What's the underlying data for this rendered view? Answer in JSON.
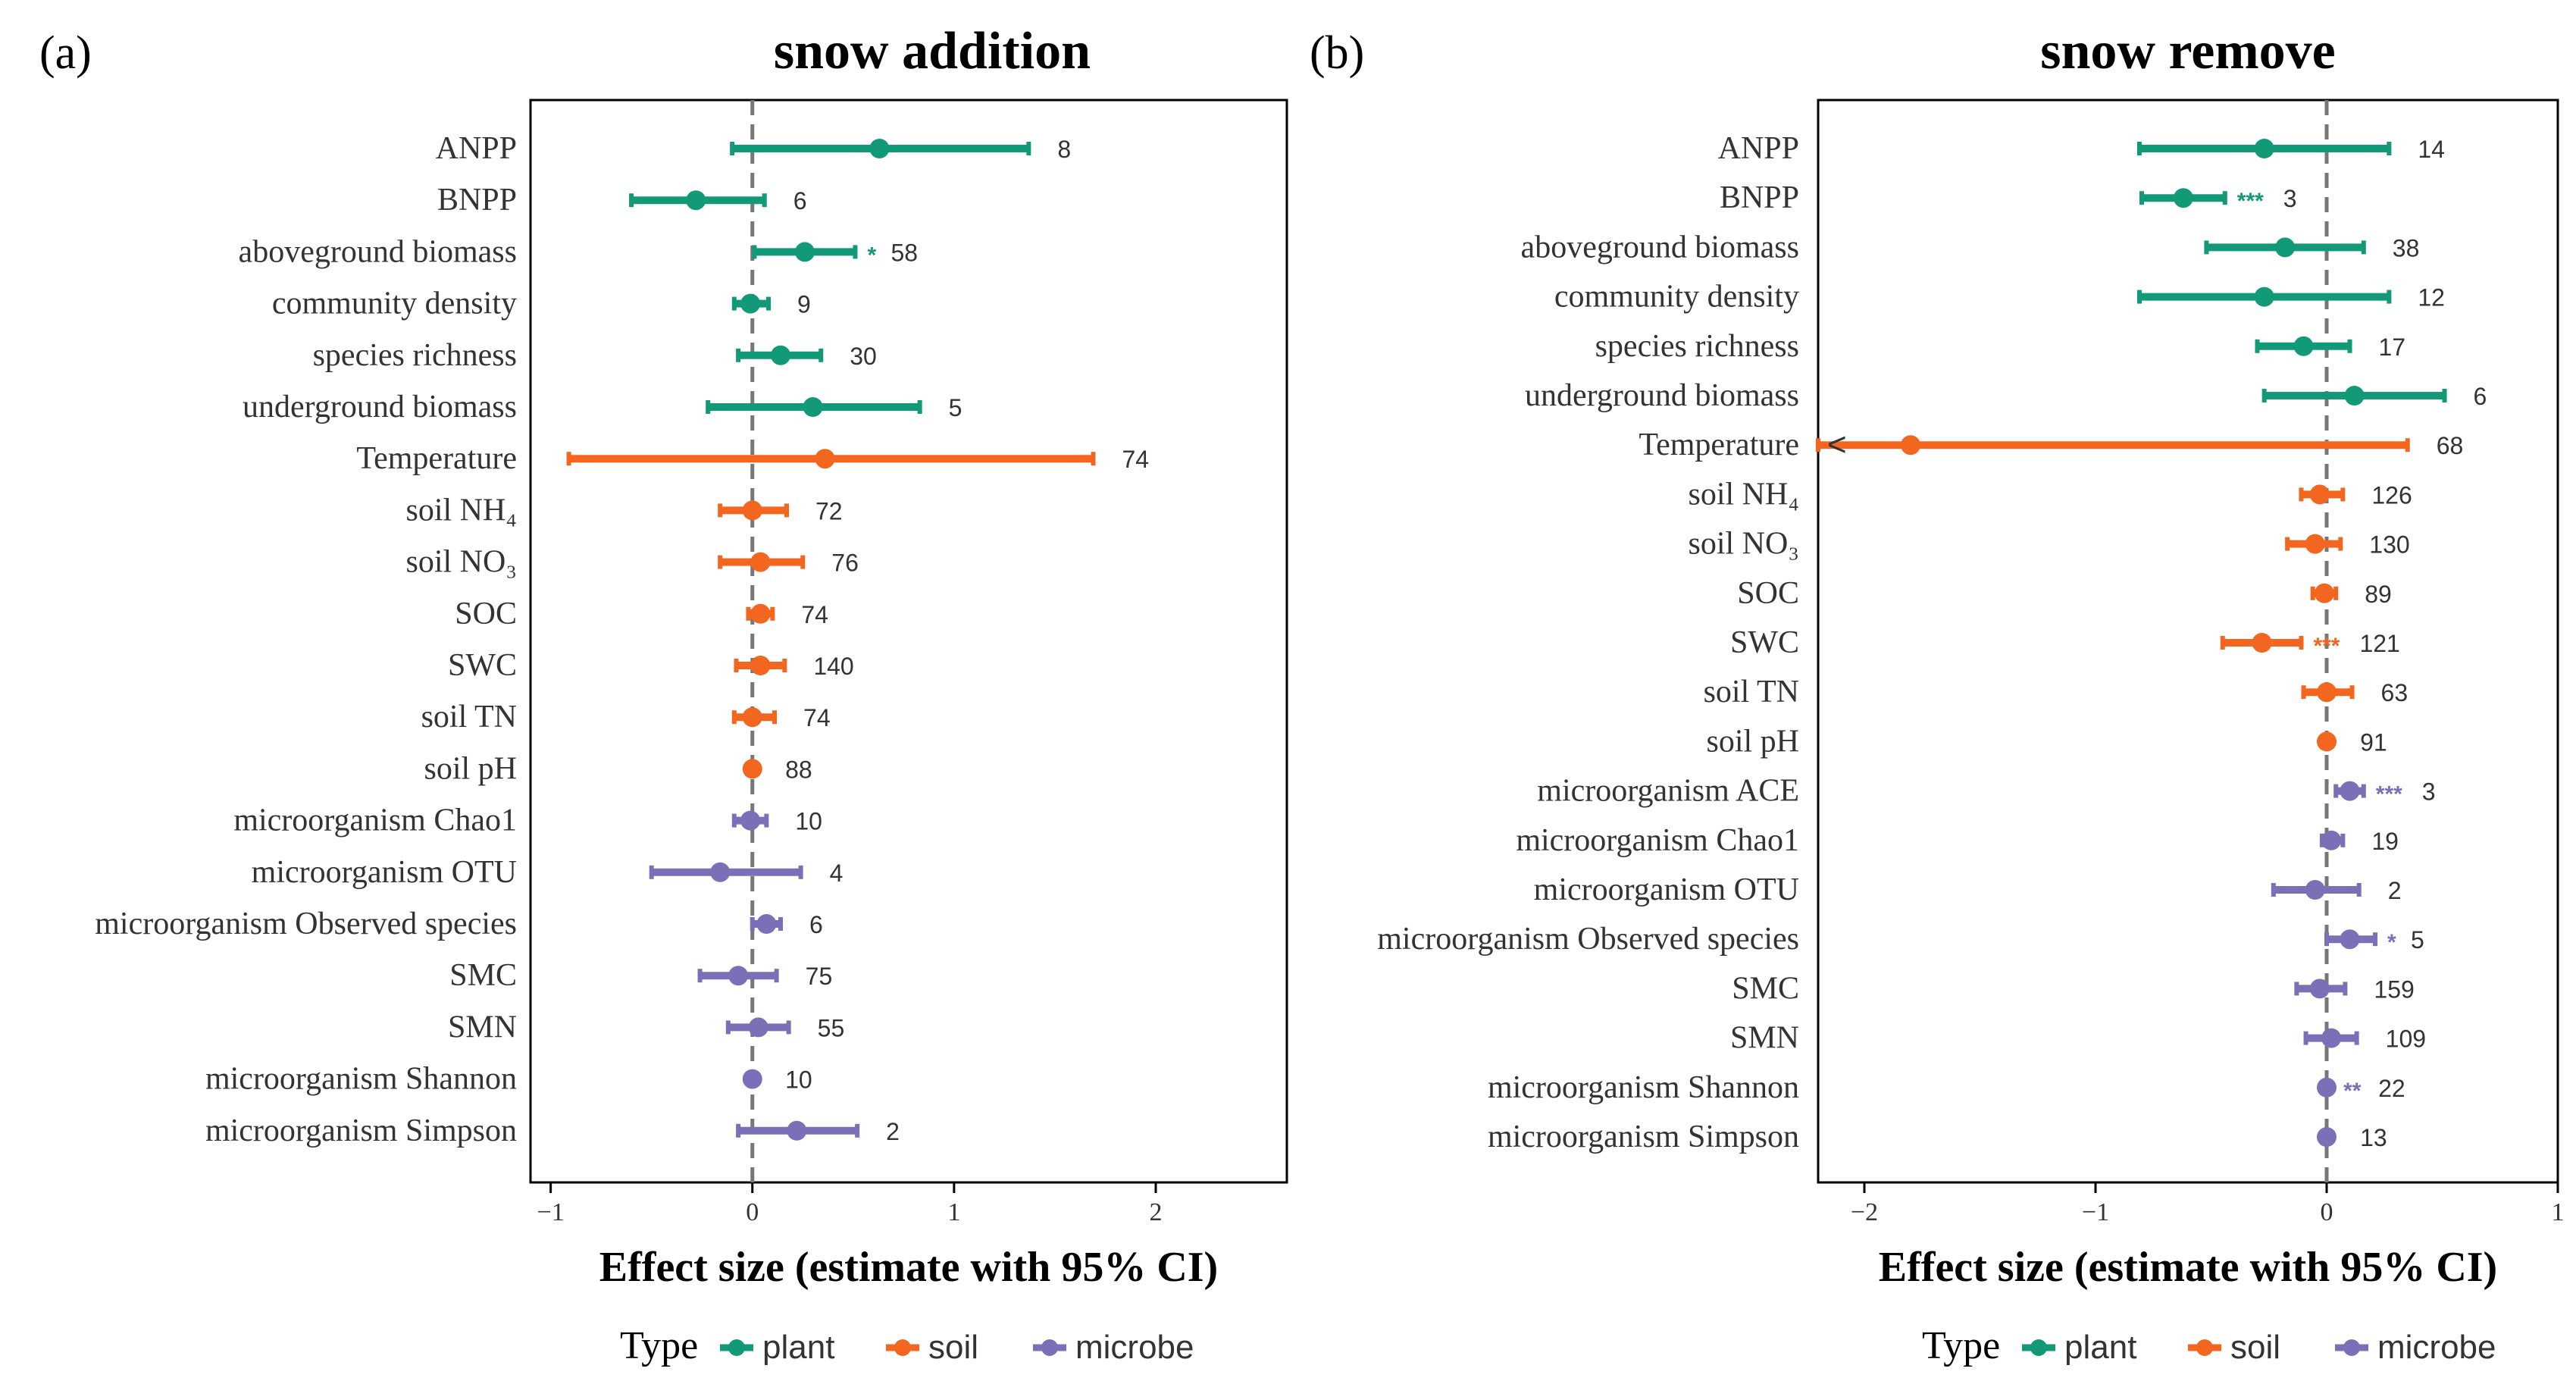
{
  "colors": {
    "plant": "#129a78",
    "soil": "#f3661f",
    "microbe": "#7b70b8",
    "axis": "#000000",
    "zero_line": "#777777",
    "label": "#333333"
  },
  "legend": {
    "title": "Type",
    "items": [
      {
        "label": "plant",
        "type": "plant"
      },
      {
        "label": "soil",
        "type": "soil"
      },
      {
        "label": "microbe",
        "type": "microbe"
      }
    ]
  },
  "chart_data": [
    {
      "type": "forest",
      "panel_label": "(a)",
      "title": "snow addition",
      "xlabel": "Effect size (estimate with 95% CI)",
      "xlim": [
        -1.1,
        2.65
      ],
      "xticks": [
        -1,
        0,
        1,
        2
      ],
      "xtick_labels": [
        "−1",
        "0",
        "1",
        "2"
      ],
      "rows": [
        {
          "label": "ANPP",
          "type": "plant",
          "estimate": 0.63,
          "lower": -0.1,
          "upper": 1.37,
          "n": "8",
          "sig": ""
        },
        {
          "label": "BNPP",
          "type": "plant",
          "estimate": -0.28,
          "lower": -0.6,
          "upper": 0.06,
          "n": "6",
          "sig": ""
        },
        {
          "label": "aboveground biomass",
          "type": "plant",
          "estimate": 0.26,
          "lower": 0.01,
          "upper": 0.51,
          "n": "58",
          "sig": "*"
        },
        {
          "label": "community density",
          "type": "plant",
          "estimate": -0.01,
          "lower": -0.09,
          "upper": 0.08,
          "n": "9",
          "sig": ""
        },
        {
          "label": "species richness",
          "type": "plant",
          "estimate": 0.14,
          "lower": -0.07,
          "upper": 0.34,
          "n": "30",
          "sig": ""
        },
        {
          "label": "underground biomass",
          "type": "plant",
          "estimate": 0.3,
          "lower": -0.22,
          "upper": 0.83,
          "n": "5",
          "sig": ""
        },
        {
          "label": "Temperature",
          "type": "soil",
          "estimate": 0.36,
          "lower": -0.91,
          "upper": 1.69,
          "n": "74",
          "sig": ""
        },
        {
          "label": "soil NH₄",
          "type": "soil",
          "estimate": 0.0,
          "lower": -0.16,
          "upper": 0.17,
          "n": "72",
          "sig": ""
        },
        {
          "label": "soil NO₃",
          "type": "soil",
          "estimate": 0.04,
          "lower": -0.16,
          "upper": 0.25,
          "n": "76",
          "sig": ""
        },
        {
          "label": "SOC",
          "type": "soil",
          "estimate": 0.04,
          "lower": -0.02,
          "upper": 0.1,
          "n": "74",
          "sig": ""
        },
        {
          "label": "SWC",
          "type": "soil",
          "estimate": 0.04,
          "lower": -0.08,
          "upper": 0.16,
          "n": "140",
          "sig": ""
        },
        {
          "label": "soil TN",
          "type": "soil",
          "estimate": 0.0,
          "lower": -0.09,
          "upper": 0.11,
          "n": "74",
          "sig": ""
        },
        {
          "label": "soil pH",
          "type": "soil",
          "estimate": 0.0,
          "lower": -0.02,
          "upper": 0.02,
          "n": "88",
          "sig": ""
        },
        {
          "label": "microorganism Chao1",
          "type": "microbe",
          "estimate": -0.01,
          "lower": -0.09,
          "upper": 0.07,
          "n": "10",
          "sig": ""
        },
        {
          "label": "microorganism OTU",
          "type": "microbe",
          "estimate": -0.16,
          "lower": -0.5,
          "upper": 0.24,
          "n": "4",
          "sig": ""
        },
        {
          "label": "microorganism Observed species",
          "type": "microbe",
          "estimate": 0.07,
          "lower": 0.0,
          "upper": 0.14,
          "n": "6",
          "sig": ""
        },
        {
          "label": "SMC",
          "type": "microbe",
          "estimate": -0.07,
          "lower": -0.26,
          "upper": 0.12,
          "n": "75",
          "sig": ""
        },
        {
          "label": "SMN",
          "type": "microbe",
          "estimate": 0.03,
          "lower": -0.12,
          "upper": 0.18,
          "n": "55",
          "sig": ""
        },
        {
          "label": "microorganism Shannon",
          "type": "microbe",
          "estimate": 0.0,
          "lower": -0.02,
          "upper": 0.02,
          "n": "10",
          "sig": ""
        },
        {
          "label": "microorganism Simpson",
          "type": "microbe",
          "estimate": 0.22,
          "lower": -0.07,
          "upper": 0.52,
          "n": "2",
          "sig": ""
        }
      ]
    },
    {
      "type": "forest",
      "panel_label": "(b)",
      "title": "snow remove",
      "xlabel": "Effect size (estimate with 95% CI)",
      "xlim": [
        -2.2,
        1.0
      ],
      "xticks": [
        -2,
        -1,
        0,
        1
      ],
      "xtick_labels": [
        "−2",
        "−1",
        "0",
        "1"
      ],
      "rows": [
        {
          "label": "ANPP",
          "type": "plant",
          "estimate": -0.27,
          "lower": -0.81,
          "upper": 0.27,
          "n": "14",
          "sig": ""
        },
        {
          "label": "BNPP",
          "type": "plant",
          "estimate": -0.62,
          "lower": -0.8,
          "upper": -0.44,
          "n": "3",
          "sig": "***"
        },
        {
          "label": "aboveground biomass",
          "type": "plant",
          "estimate": -0.18,
          "lower": -0.52,
          "upper": 0.16,
          "n": "38",
          "sig": ""
        },
        {
          "label": "community density",
          "type": "plant",
          "estimate": -0.27,
          "lower": -0.81,
          "upper": 0.27,
          "n": "12",
          "sig": ""
        },
        {
          "label": "species richness",
          "type": "plant",
          "estimate": -0.1,
          "lower": -0.3,
          "upper": 0.1,
          "n": "17",
          "sig": ""
        },
        {
          "label": "underground biomass",
          "type": "plant",
          "estimate": 0.12,
          "lower": -0.27,
          "upper": 0.51,
          "n": "6",
          "sig": ""
        },
        {
          "label": "Temperature",
          "type": "soil",
          "estimate": -1.8,
          "lower": -2.2,
          "upper": 0.35,
          "n": "68",
          "sig": "",
          "truncated": true
        },
        {
          "label": "soil NH₄",
          "type": "soil",
          "estimate": -0.03,
          "lower": -0.11,
          "upper": 0.07,
          "n": "126",
          "sig": ""
        },
        {
          "label": "soil NO₃",
          "type": "soil",
          "estimate": -0.05,
          "lower": -0.17,
          "upper": 0.06,
          "n": "130",
          "sig": ""
        },
        {
          "label": "SOC",
          "type": "soil",
          "estimate": -0.01,
          "lower": -0.06,
          "upper": 0.04,
          "n": "89",
          "sig": ""
        },
        {
          "label": "SWC",
          "type": "soil",
          "estimate": -0.28,
          "lower": -0.45,
          "upper": -0.11,
          "n": "121",
          "sig": "***"
        },
        {
          "label": "soil TN",
          "type": "soil",
          "estimate": 0.0,
          "lower": -0.1,
          "upper": 0.11,
          "n": "63",
          "sig": ""
        },
        {
          "label": "soil pH",
          "type": "soil",
          "estimate": 0.0,
          "lower": -0.02,
          "upper": 0.02,
          "n": "91",
          "sig": ""
        },
        {
          "label": "microorganism ACE",
          "type": "microbe",
          "estimate": 0.1,
          "lower": 0.04,
          "upper": 0.16,
          "n": "3",
          "sig": "***"
        },
        {
          "label": "microorganism Chao1",
          "type": "microbe",
          "estimate": 0.02,
          "lower": -0.02,
          "upper": 0.07,
          "n": "19",
          "sig": ""
        },
        {
          "label": "microorganism OTU",
          "type": "microbe",
          "estimate": -0.05,
          "lower": -0.23,
          "upper": 0.14,
          "n": "2",
          "sig": ""
        },
        {
          "label": "microorganism Observed species",
          "type": "microbe",
          "estimate": 0.1,
          "lower": 0.0,
          "upper": 0.21,
          "n": "5",
          "sig": "*"
        },
        {
          "label": "SMC",
          "type": "microbe",
          "estimate": -0.03,
          "lower": -0.13,
          "upper": 0.08,
          "n": "159",
          "sig": ""
        },
        {
          "label": "SMN",
          "type": "microbe",
          "estimate": 0.02,
          "lower": -0.09,
          "upper": 0.13,
          "n": "109",
          "sig": ""
        },
        {
          "label": "microorganism Shannon",
          "type": "microbe",
          "estimate": 0.0,
          "lower": -0.02,
          "upper": 0.02,
          "n": "22",
          "sig": "**"
        },
        {
          "label": "microorganism Simpson",
          "type": "microbe",
          "estimate": 0.0,
          "lower": -0.02,
          "upper": 0.02,
          "n": "13",
          "sig": ""
        }
      ]
    }
  ]
}
